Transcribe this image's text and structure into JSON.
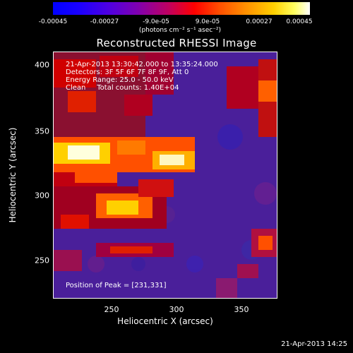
{
  "colorbar": {
    "ticks": [
      "-0.00045",
      "-0.00027",
      "-9.0e-05",
      "9.0e-05",
      "0.00027",
      "0.00045"
    ],
    "unit_label": "(photons cm⁻² s⁻¹ asec⁻²)"
  },
  "plot": {
    "title": "Reconstructed RHESSI Image",
    "info_lines": [
      "21-Apr-2013 13:30:42.000 to 13:35:24.000",
      "Detectors: 3F 5F 6F 7F 8F 9F, Att 0",
      "Energy Range: 25.0 - 50.0 keV",
      "Clean     Total counts: 1.40E+04"
    ],
    "peak_label": "Position of Peak = [231,331]",
    "x_axis_label": "Heliocentric X (arcsec)",
    "y_axis_label": "Heliocentric Y (arcsec)",
    "x_ticks": [
      "250",
      "300",
      "350"
    ],
    "y_ticks": [
      "400",
      "350",
      "300",
      "250"
    ]
  },
  "timestamp": "21-Apr-2013 14:25",
  "colors": {
    "background": "#000000",
    "map_base": "#4a1f9a",
    "hot_white": "#ffffdd",
    "hot_yellow": "#ffd000",
    "hot_red": "#e00000"
  }
}
